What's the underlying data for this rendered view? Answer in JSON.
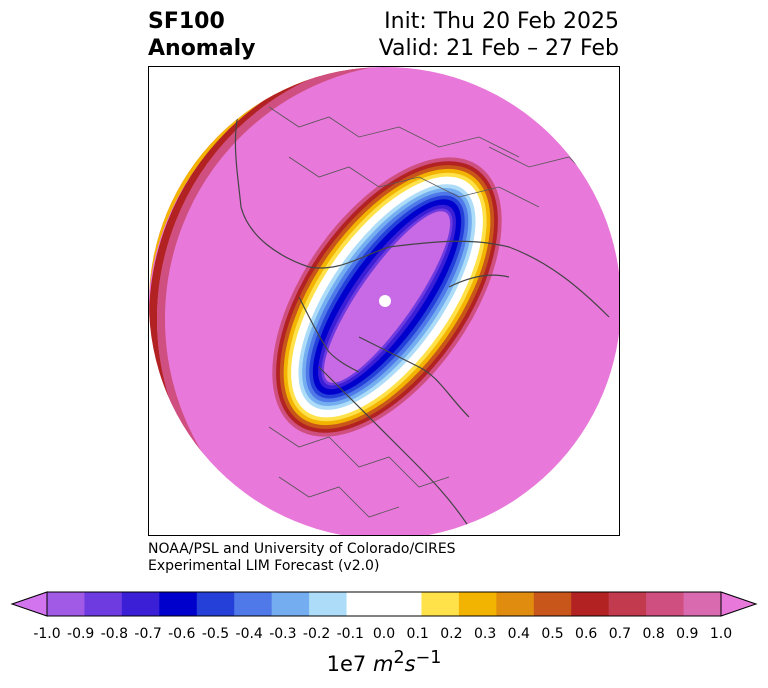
{
  "title": {
    "variable": "SF100",
    "subtitle": "Anomaly",
    "init": "Init: Thu 20 Feb 2025",
    "valid": "Valid: 21 Feb – 27 Feb"
  },
  "credit": {
    "line1": "NOAA/PSL and University of Colorado/CIRES",
    "line2": "Experimental LIM Forecast (v2.0)"
  },
  "colorbar": {
    "ticks": [
      "-1.0",
      "-0.9",
      "-0.8",
      "-0.7",
      "-0.6",
      "-0.5",
      "-0.4",
      "-0.3",
      "-0.2",
      "-0.1",
      "0.0",
      "0.1",
      "0.2",
      "0.3",
      "0.4",
      "0.5",
      "0.6",
      "0.7",
      "0.8",
      "0.9",
      "1.0"
    ],
    "colors": [
      "#a05ae6",
      "#6e3be0",
      "#3a1fd6",
      "#0000cd",
      "#2540d9",
      "#4f78e8",
      "#74aef0",
      "#addcf8",
      "#ffffff",
      "#ffffff",
      "#ffe14a",
      "#f2b400",
      "#e08c0f",
      "#c8551a",
      "#b22222",
      "#c23a4e",
      "#cf5080",
      "#d96aaf"
    ],
    "under_color": "#d274ee",
    "over_color": "#e878da",
    "units_prefix": "1e7",
    "units_main": "m",
    "units_sup1": "2",
    "units_mid": "s",
    "units_sup2": "−1"
  },
  "map": {
    "projection": "north polar stereographic",
    "background_color": "#e878da",
    "anomaly_core_color": "#c86ae6",
    "ring_colors": [
      "#0000cd",
      "#4f78e8",
      "#addcf8",
      "#ffffff",
      "#ffe14a",
      "#f2b400",
      "#c8551a",
      "#b22222"
    ]
  }
}
